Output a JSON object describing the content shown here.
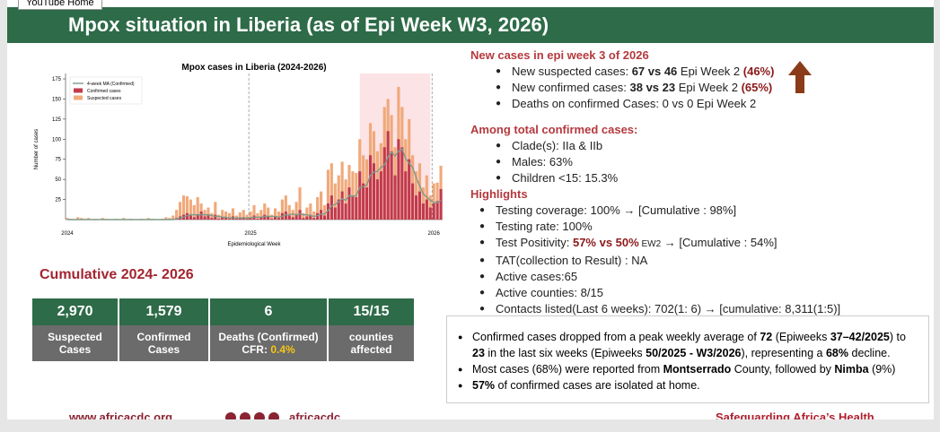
{
  "tooltip": "YouTube Home",
  "header": {
    "title": "Mpox situation in Liberia (as of Epi Week W3, 2026)"
  },
  "chart_data": {
    "type": "bar",
    "title": "Mpox cases in Liberia (2024-2026)",
    "xlabel": "Epidemiological Week",
    "ylabel": "Number of cases",
    "categories": [
      "2024",
      null,
      null,
      null,
      null,
      null,
      null,
      null,
      null,
      null,
      null,
      null,
      null,
      null,
      null,
      null,
      null,
      null,
      null,
      null,
      null,
      null,
      null,
      null,
      null,
      null,
      null,
      null,
      null,
      null,
      null,
      null,
      null,
      null,
      null,
      null,
      null,
      null,
      null,
      null,
      null,
      null,
      null,
      null,
      null,
      null,
      null,
      null,
      null,
      null,
      null,
      null,
      "2025",
      null,
      null,
      null,
      null,
      null,
      null,
      null,
      null,
      null,
      null,
      null,
      null,
      null,
      null,
      null,
      null,
      null,
      null,
      null,
      null,
      null,
      null,
      null,
      null,
      null,
      null,
      null,
      null,
      null,
      null,
      null,
      null,
      null,
      null,
      null,
      null,
      null,
      null,
      null,
      null,
      null,
      null,
      null,
      null,
      null,
      null,
      null,
      null,
      null,
      null,
      null,
      "2026",
      null,
      null
    ],
    "ylim": [
      0,
      175
    ],
    "yticks": [
      25,
      50,
      75,
      100,
      125,
      150,
      175
    ],
    "legend": "upper left",
    "series": [
      {
        "name": "4-week MA (Confirmed)",
        "type": "line",
        "color": "#7f9a8c",
        "values": [
          0,
          0,
          0,
          0,
          0,
          0,
          0,
          0,
          0,
          0,
          0,
          0,
          0,
          0,
          0,
          0,
          0,
          0,
          0,
          0,
          0,
          0,
          0,
          0,
          0,
          0,
          0,
          0,
          0,
          0,
          0,
          1,
          2,
          3,
          5,
          6,
          6,
          6,
          6,
          6,
          6,
          5,
          4,
          4,
          3,
          3,
          2,
          2,
          2,
          2,
          2,
          2,
          2,
          3,
          3,
          3,
          4,
          4,
          4,
          4,
          3,
          4,
          6,
          6,
          7,
          6,
          7,
          6,
          6,
          5,
          4,
          5,
          7,
          7,
          11,
          17,
          19,
          22,
          26,
          24,
          30,
          29,
          30,
          40,
          41,
          43,
          55,
          59,
          60,
          65,
          68,
          78,
          84,
          79,
          85,
          88,
          76,
          70,
          65,
          52,
          42,
          32,
          28,
          24,
          21,
          21,
          24
        ]
      },
      {
        "name": "Confirmed cases",
        "type": "bar",
        "color": "#c23a4c",
        "values": [
          0,
          0,
          0,
          0,
          0,
          0,
          0,
          0,
          0,
          0,
          0,
          0,
          0,
          0,
          0,
          0,
          0,
          0,
          0,
          0,
          0,
          0,
          0,
          0,
          0,
          0,
          0,
          0,
          0,
          0,
          0,
          2,
          4,
          6,
          8,
          5,
          3,
          6,
          10,
          4,
          5,
          2,
          6,
          1,
          3,
          2,
          1,
          4,
          1,
          2,
          3,
          1,
          2,
          5,
          1,
          3,
          6,
          4,
          1,
          4,
          2,
          8,
          10,
          5,
          3,
          6,
          12,
          2,
          4,
          6,
          2,
          8,
          12,
          5,
          20,
          30,
          15,
          25,
          35,
          20,
          40,
          30,
          28,
          60,
          45,
          40,
          80,
          70,
          50,
          60,
          90,
          110,
          85,
          55,
          100,
          90,
          60,
          75,
          45,
          30,
          35,
          20,
          25,
          15,
          20,
          23,
          38
        ]
      },
      {
        "name": "Suspected cases",
        "type": "bar",
        "color": "#f0a97a",
        "values": [
          2,
          1,
          0,
          3,
          2,
          1,
          2,
          0,
          1,
          0,
          2,
          1,
          0,
          0,
          1,
          0,
          2,
          0,
          1,
          0,
          0,
          1,
          0,
          2,
          1,
          0,
          0,
          1,
          3,
          2,
          5,
          12,
          22,
          30,
          29,
          25,
          18,
          28,
          20,
          12,
          15,
          8,
          22,
          6,
          12,
          10,
          8,
          14,
          5,
          9,
          12,
          6,
          10,
          18,
          8,
          12,
          20,
          15,
          6,
          14,
          10,
          25,
          30,
          18,
          12,
          22,
          40,
          8,
          15,
          20,
          10,
          28,
          35,
          18,
          62,
          70,
          45,
          55,
          72,
          50,
          68,
          60,
          58,
          100,
          80,
          75,
          120,
          110,
          85,
          95,
          140,
          150,
          130,
          90,
          165,
          140,
          100,
          125,
          80,
          60,
          70,
          40,
          55,
          30,
          45,
          46,
          67
        ]
      }
    ]
  },
  "new_cases": {
    "heading": "New cases in epi week 3 of 2026",
    "items": [
      [
        {
          "text": "New suspected cases: "
        },
        {
          "text": "67 vs 46",
          "bold": true
        },
        {
          "text": " Epi Week 2 "
        },
        {
          "text": "(46%)",
          "bold": true,
          "color": "#8b1a1a"
        }
      ],
      [
        {
          "text": "New confirmed cases: "
        },
        {
          "text": "38 vs 23",
          "bold": true
        },
        {
          "text": "  Epi Week 2 "
        },
        {
          "text": "(65%)",
          "bold": true,
          "color": "#8b1a1a"
        }
      ],
      [
        {
          "text": "Deaths on confirmed Cases: 0 vs 0  Epi Week 2"
        }
      ]
    ]
  },
  "confirmed": {
    "heading": "Among total confirmed cases:",
    "items": [
      [
        {
          "text": "Clade(s): IIa & IIb"
        }
      ],
      [
        {
          "text": "Males: 63%"
        }
      ],
      [
        {
          "text": "Children <15: 15.3%"
        }
      ]
    ]
  },
  "highlights": {
    "heading": "Highlights",
    "items": [
      [
        {
          "text": "Testing coverage: 100%  →  [Cumulative : 98%]"
        }
      ],
      [
        {
          "text": "Testing rate: 100%"
        }
      ],
      [
        {
          "text": "Test Positivity: "
        },
        {
          "text": "57% vs 50%",
          "bold": true,
          "color": "#8b1a1a"
        },
        {
          "text": " EW2",
          "small": true
        },
        {
          "text": " →  [Cumulative : 54%]"
        }
      ],
      [
        {
          "text": "TAT(collection to Result) : NA"
        }
      ],
      [
        {
          "text": "Active cases:65"
        }
      ],
      [
        {
          "text": "Active counties: 8/15"
        }
      ],
      [
        {
          "text": "Contacts listed(Last 6 weeks): 702(1: 6)   → [cumulative: 8,311(1:5)]"
        }
      ]
    ]
  },
  "cumulative": {
    "title": "Cumulative 2024- 2026",
    "tiles": [
      {
        "value": "2,970",
        "label": "Suspected Cases"
      },
      {
        "value": "1,579",
        "label": "Confirmed Cases"
      },
      {
        "value": "6",
        "label": "Deaths (Confirmed)",
        "sub": [
          {
            "text": "CFR: "
          },
          {
            "text": "0.4%",
            "color": "#f5c518"
          }
        ]
      },
      {
        "value": "15/15",
        "label": "counties affected"
      }
    ]
  },
  "summary": {
    "items": [
      [
        {
          "text": "Confirmed cases dropped from a peak weekly average of "
        },
        {
          "text": "72",
          "bold": true
        },
        {
          "text": " (Epiweeks "
        },
        {
          "text": "37–42/2025",
          "bold": true
        },
        {
          "text": ") to "
        },
        {
          "text": "23",
          "bold": true
        },
        {
          "text": " in the last six weeks (Epiweeks "
        },
        {
          "text": "50/2025 - W3/2026",
          "bold": true
        },
        {
          "text": "), representing a "
        },
        {
          "text": "68%",
          "bold": true
        },
        {
          "text": " decline."
        }
      ],
      [
        {
          "text": "Most cases (68%) were reported from "
        },
        {
          "text": "Montserrado",
          "bold": true
        },
        {
          "text": " County, followed by "
        },
        {
          "text": "Nimba",
          "bold": true
        },
        {
          "text": " (9%)"
        }
      ],
      [
        {
          "text": "57%",
          "bold": true
        },
        {
          "text": " of confirmed cases are isolated at home."
        }
      ]
    ]
  },
  "footer": {
    "website": "www.africacdc.org",
    "handle": "africacdc",
    "tagline": "Safeguarding Africa’s Health"
  }
}
